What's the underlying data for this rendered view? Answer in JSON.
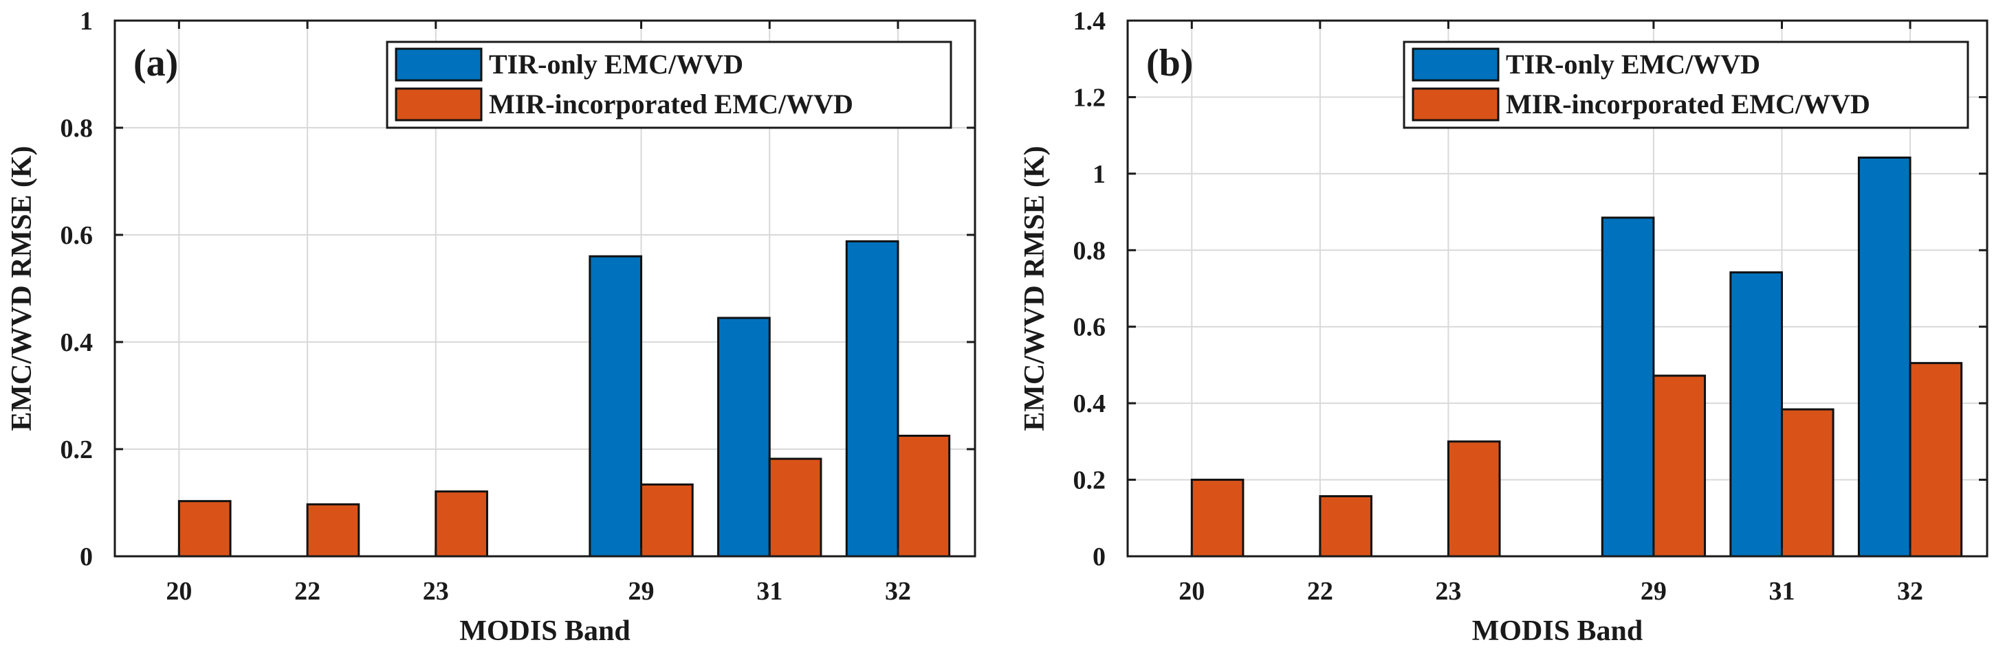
{
  "colors": {
    "tir": "#0072BD",
    "mir": "#D95319"
  },
  "chart_data": [
    {
      "type": "bar",
      "panel_label": "(a)",
      "xlabel": "MODIS Band",
      "ylabel": "EMC/WVD RMSE (K)",
      "categories": [
        "20",
        "22",
        "23",
        "29",
        "31",
        "32"
      ],
      "category_positions": [
        1,
        2,
        3,
        4.6,
        5.6,
        6.6
      ],
      "xlim": [
        0.5,
        7.2
      ],
      "ylim": [
        0,
        1
      ],
      "yticks": [
        0,
        0.2,
        0.4,
        0.6,
        0.8,
        1
      ],
      "ytick_labels": [
        "0",
        "0.2",
        "0.4",
        "0.6",
        "0.8",
        "1"
      ],
      "grid": true,
      "legend_position": "top-right",
      "series": [
        {
          "name": "TIR-only EMC/WVD",
          "color_key": "tir",
          "values": [
            null,
            null,
            null,
            0.56,
            0.445,
            0.588
          ]
        },
        {
          "name": "MIR-incorporated EMC/WVD",
          "color_key": "mir",
          "values": [
            0.103,
            0.097,
            0.121,
            0.134,
            0.182,
            0.225
          ]
        }
      ]
    },
    {
      "type": "bar",
      "panel_label": "(b)",
      "xlabel": "MODIS Band",
      "ylabel": "EMC/WVD RMSE (K)",
      "categories": [
        "20",
        "22",
        "23",
        "29",
        "31",
        "32"
      ],
      "category_positions": [
        1,
        2,
        3,
        4.6,
        5.6,
        6.6
      ],
      "xlim": [
        0.5,
        7.2
      ],
      "ylim": [
        0,
        1.4
      ],
      "yticks": [
        0,
        0.2,
        0.4,
        0.6,
        0.8,
        1,
        1.2,
        1.4
      ],
      "ytick_labels": [
        "0",
        "0.2",
        "0.4",
        "0.6",
        "0.8",
        "1",
        "1.2",
        "1.4"
      ],
      "grid": true,
      "legend_position": "top-right",
      "series": [
        {
          "name": "TIR-only EMC/WVD",
          "color_key": "tir",
          "values": [
            null,
            null,
            null,
            0.885,
            0.742,
            1.042
          ]
        },
        {
          "name": "MIR-incorporated EMC/WVD",
          "color_key": "mir",
          "values": [
            0.2,
            0.157,
            0.3,
            0.472,
            0.384,
            0.505
          ]
        }
      ]
    }
  ]
}
